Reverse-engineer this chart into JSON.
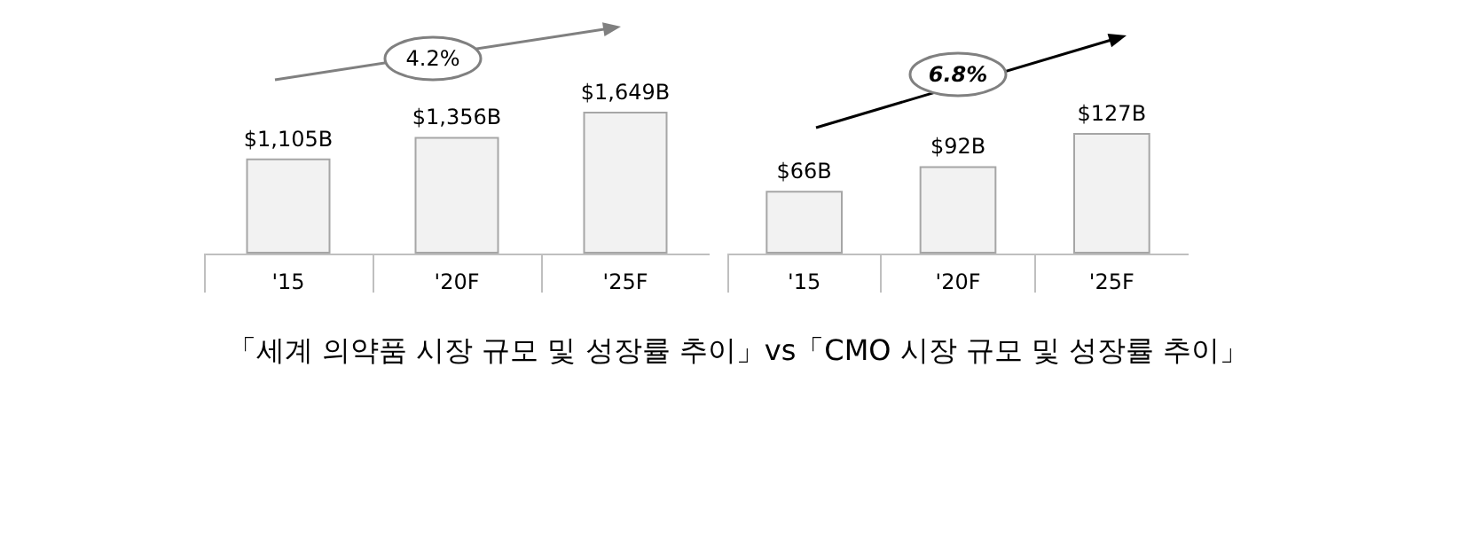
{
  "chart_data": [
    {
      "type": "bar",
      "categories": [
        "'15",
        "'20F",
        "'25F"
      ],
      "values": [
        1105,
        1356,
        1649
      ],
      "value_labels": [
        "$1,105B",
        "$1,356B",
        "$1,649B"
      ],
      "color": "#f2f2f2",
      "tick_labels": "x",
      "annotations": [
        "4.2%"
      ]
    },
    {
      "type": "bar",
      "categories": [
        "'15",
        "'20F",
        "'25F"
      ],
      "values": [
        66,
        92,
        127
      ],
      "value_labels": [
        "$66B",
        "$92B",
        "$127B"
      ],
      "color": "#f2f2f2",
      "tick_labels": "x",
      "annotations": [
        "6.8%"
      ]
    },
    {
      "type": "other",
      "title": "「세계 의약품 시장 규모 및 성장률 추이」vs「CMO 시장 규모 및 성장률 추이」"
    }
  ]
}
